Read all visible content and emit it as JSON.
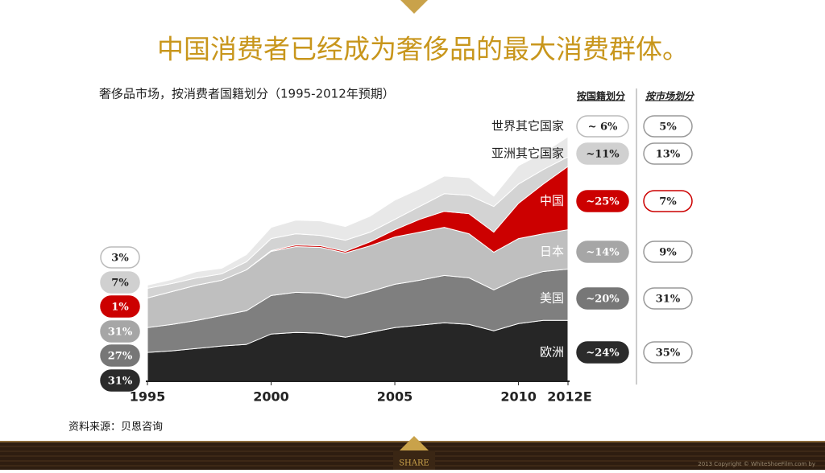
{
  "title": "中国消费者已经成为奢侈品的最大消费群体。",
  "chart_data": {
    "type": "stacked-area",
    "title": "奢侈品市场，按消费者国籍划分（1995-2012年预期）",
    "x": [
      1995,
      1996,
      1997,
      1998,
      1999,
      2000,
      2001,
      2002,
      2003,
      2004,
      2005,
      2006,
      2007,
      2008,
      2009,
      2010,
      2011,
      2012
    ],
    "xlim": [
      1995,
      2012
    ],
    "xticks": [
      1995,
      2000,
      2005,
      2010,
      {
        "value": 2012,
        "label": "2012E"
      }
    ],
    "series": [
      {
        "name": "欧洲",
        "color": "#262626",
        "values": [
          36,
          38,
          41,
          44,
          46,
          59,
          61,
          60,
          55,
          61,
          67,
          70,
          73,
          71,
          63,
          72,
          76,
          76
        ]
      },
      {
        "name": "美国",
        "color": "#7f7f7f",
        "values": [
          31,
          33,
          35,
          38,
          42,
          48,
          50,
          50,
          49,
          51,
          54,
          56,
          59,
          58,
          51,
          56,
          61,
          64
        ]
      },
      {
        "name": "日本",
        "color": "#bfbfbf",
        "values": [
          37,
          41,
          44,
          44,
          51,
          55,
          57,
          57,
          56,
          57,
          59,
          60,
          60,
          55,
          47,
          50,
          47,
          49
        ]
      },
      {
        "name": "中国",
        "color": "#cc0000",
        "values": [
          0,
          0,
          0,
          0,
          0,
          1,
          2,
          2,
          2,
          5,
          9,
          16,
          20,
          25,
          25,
          44,
          62,
          79
        ]
      },
      {
        "name": "亚洲其它国家",
        "color": "#d3d3d3",
        "values": [
          12,
          10,
          9,
          8,
          10,
          15,
          14,
          13,
          14,
          12,
          13,
          16,
          22,
          23,
          32,
          24,
          18,
          12
        ]
      },
      {
        "name": "世界其它国家",
        "color": "#e8e8e8",
        "values": [
          4,
          5,
          8,
          7,
          9,
          14,
          17,
          18,
          17,
          20,
          24,
          22,
          22,
          22,
          13,
          23,
          21,
          25
        ]
      }
    ],
    "start_labels": [
      "31%",
      "27%",
      "31%",
      "1%",
      "7%",
      "3%"
    ],
    "nationality_header": "按国籍划分",
    "nationality_labels": [
      "~24%",
      "~20%",
      "~14%",
      "~25%",
      "~11%",
      "~ 6%"
    ],
    "market_header": "按市场划分",
    "market_labels": [
      "35%",
      "31%",
      "9%",
      "7%",
      "13%",
      "5%"
    ],
    "source": "资料来源：贝恩咨询"
  },
  "footer": {
    "button": "SHARE",
    "copyright": "2013 Copyright © WhiteShoeFilm.com by"
  }
}
